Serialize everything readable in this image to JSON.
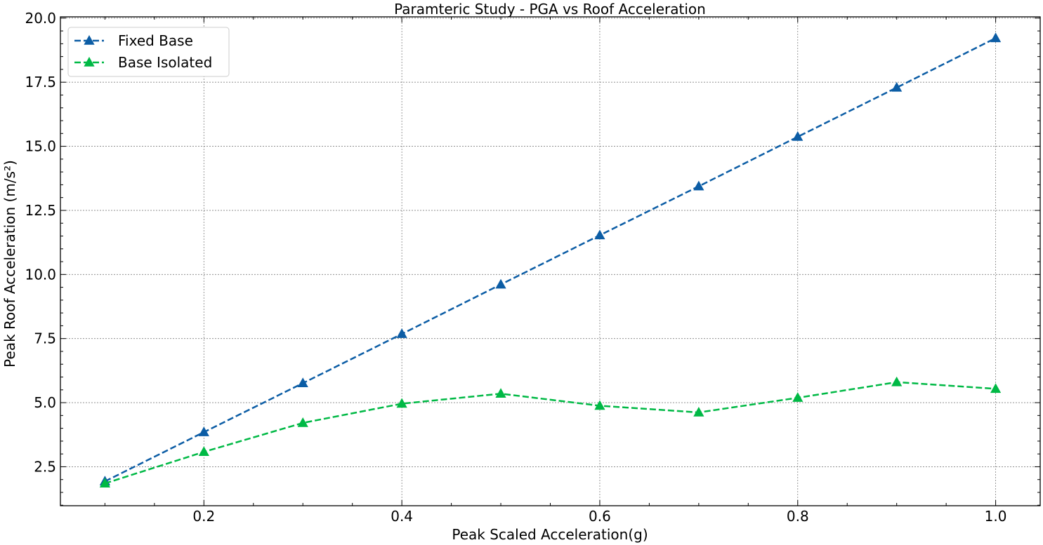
{
  "chart_data": {
    "type": "line",
    "title": "Paramteric Study - PGA vs Roof Acceleration",
    "xlabel": "Peak Scaled Acceleration(g)",
    "ylabel": "Peak Roof Acceleration (m/s²)",
    "xlim": [
      0.055,
      1.045
    ],
    "ylim": [
      0.98,
      20.05
    ],
    "xticks": [
      0.2,
      0.4,
      0.6,
      0.8,
      1.0
    ],
    "xtick_labels": [
      "0.2",
      "0.4",
      "0.6",
      "0.8",
      "1.0"
    ],
    "yticks": [
      2.5,
      5.0,
      7.5,
      10.0,
      12.5,
      15.0,
      17.5,
      20.0
    ],
    "ytick_labels": [
      "2.5",
      "5.0",
      "7.5",
      "10.0",
      "12.5",
      "15.0",
      "17.5",
      "20.0"
    ],
    "grid": true,
    "legend_position": "top-left",
    "x": [
      0.1,
      0.2,
      0.3,
      0.4,
      0.5,
      0.6,
      0.7,
      0.8,
      0.9,
      1.0
    ],
    "series": [
      {
        "name": "Fixed Base",
        "color": "#0C5DA5",
        "marker": "triangle-up",
        "linestyle": "dashed",
        "values": [
          1.93,
          3.85,
          5.76,
          7.68,
          9.61,
          11.53,
          13.44,
          15.37,
          17.29,
          19.22
        ]
      },
      {
        "name": "Base Isolated",
        "color": "#00B945",
        "marker": "triangle-up",
        "linestyle": "dashed",
        "values": [
          1.85,
          3.08,
          4.21,
          4.96,
          5.35,
          4.88,
          4.62,
          5.19,
          5.8,
          5.54
        ]
      }
    ]
  }
}
